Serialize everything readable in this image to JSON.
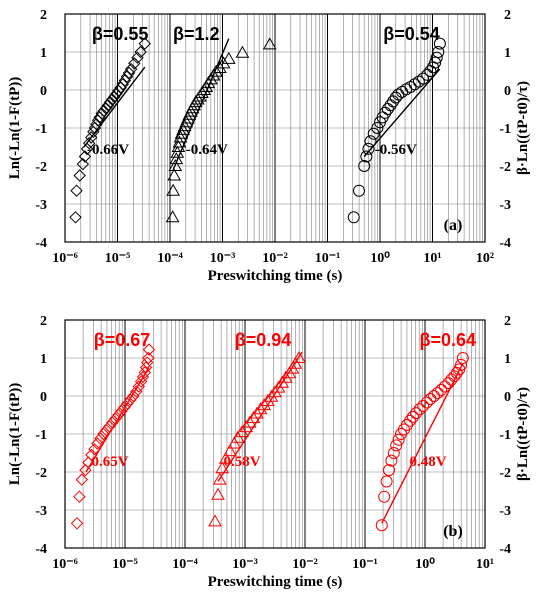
{
  "chart_data": [
    {
      "type": "scatter",
      "panel_label": "(a)",
      "xlabel": "Preswitching time (s)",
      "ylabel_left": "Ln(-Ln(1-F(tP))",
      "ylabel_right": "β·Ln((tP-t0)/τ)",
      "x_scale": "log",
      "xlim": [
        -6,
        2
      ],
      "ylim": [
        -4,
        2
      ],
      "x_tick_labels": [
        "10⁻⁶",
        "10⁻⁵",
        "10⁻⁴",
        "10⁻³",
        "10⁻²",
        "10⁻¹",
        "10⁰",
        "10¹",
        "10²"
      ],
      "y_tick_labels": [
        "-4",
        "-3",
        "-2",
        "-1",
        "0",
        "1",
        "2"
      ],
      "color": "#000000",
      "grid": true,
      "series": [
        {
          "marker": "diamond",
          "beta_label": "β=0.55",
          "voltage_label": "-0.66V",
          "x_log": [
            -5.8,
            -5.78,
            -5.72,
            -5.66,
            -5.62,
            -5.58,
            -5.54,
            -5.5,
            -5.46,
            -5.43,
            -5.4,
            -5.37,
            -5.34,
            -5.3,
            -5.26,
            -5.22,
            -5.18,
            -5.14,
            -5.1,
            -5.06,
            -5.02,
            -4.98,
            -4.94,
            -4.9,
            -4.86,
            -4.82,
            -4.78,
            -4.74,
            -4.68,
            -4.62,
            -4.56,
            -4.48
          ],
          "y": [
            -3.35,
            -2.65,
            -2.25,
            -1.95,
            -1.75,
            -1.55,
            -1.4,
            -1.25,
            -1.1,
            -1.0,
            -0.9,
            -0.8,
            -0.72,
            -0.62,
            -0.55,
            -0.48,
            -0.4,
            -0.32,
            -0.25,
            -0.18,
            -0.1,
            -0.02,
            0.06,
            0.15,
            0.25,
            0.35,
            0.45,
            0.55,
            0.7,
            0.85,
            1.0,
            1.22
          ],
          "fit_x_log": [
            -5.64,
            -4.48
          ],
          "fit_y": [
            -1.5,
            0.6
          ]
        },
        {
          "marker": "triangle",
          "beta_label": "β=1.2",
          "voltage_label": "-0.64V",
          "x_log": [
            -3.95,
            -3.94,
            -3.92,
            -3.9,
            -3.88,
            -3.86,
            -3.84,
            -3.82,
            -3.8,
            -3.78,
            -3.75,
            -3.72,
            -3.69,
            -3.66,
            -3.63,
            -3.6,
            -3.57,
            -3.54,
            -3.51,
            -3.47,
            -3.43,
            -3.39,
            -3.35,
            -3.31,
            -3.27,
            -3.22,
            -3.17,
            -3.12,
            -3.05,
            -2.98,
            -2.88,
            -2.62,
            -2.1
          ],
          "y": [
            -3.35,
            -2.65,
            -2.25,
            -2.0,
            -1.82,
            -1.65,
            -1.5,
            -1.38,
            -1.25,
            -1.15,
            -1.05,
            -0.95,
            -0.85,
            -0.75,
            -0.65,
            -0.57,
            -0.48,
            -0.4,
            -0.32,
            -0.25,
            -0.17,
            -0.08,
            0.0,
            0.08,
            0.18,
            0.28,
            0.38,
            0.48,
            0.58,
            0.7,
            0.82,
            0.98,
            1.2
          ],
          "fit_x_log": [
            -3.94,
            -2.88
          ],
          "fit_y": [
            -2.1,
            1.35
          ]
        },
        {
          "marker": "circle",
          "beta_label": "β=0.54",
          "voltage_label": "-0.56V",
          "x_log": [
            -0.5,
            -0.4,
            -0.3,
            -0.26,
            -0.22,
            -0.18,
            -0.12,
            -0.05,
            0.0,
            0.05,
            0.1,
            0.15,
            0.2,
            0.25,
            0.3,
            0.35,
            0.42,
            0.5,
            0.58,
            0.66,
            0.74,
            0.82,
            0.9,
            0.96,
            1.01,
            1.05,
            1.08,
            1.11,
            1.14
          ],
          "y": [
            -3.35,
            -2.65,
            -2.0,
            -1.75,
            -1.55,
            -1.35,
            -1.15,
            -1.0,
            -0.85,
            -0.72,
            -0.6,
            -0.5,
            -0.4,
            -0.3,
            -0.2,
            -0.12,
            -0.05,
            0.02,
            0.08,
            0.15,
            0.22,
            0.3,
            0.4,
            0.5,
            0.6,
            0.72,
            0.85,
            1.0,
            1.22
          ],
          "fit_x_log": [
            -0.3,
            1.14
          ],
          "fit_y": [
            -1.75,
            0.55
          ]
        }
      ]
    },
    {
      "type": "scatter",
      "panel_label": "(b)",
      "xlabel": "Preswitching time (s)",
      "ylabel_left": "Ln(-Ln(1-F(tP))",
      "ylabel_right": "β·Ln((tP-t0)/τ)",
      "x_scale": "log",
      "xlim": [
        -6,
        1
      ],
      "ylim": [
        -4,
        2
      ],
      "x_tick_labels": [
        "10⁻⁶",
        "10⁻⁵",
        "10⁻⁴",
        "10⁻³",
        "10⁻²",
        "10⁻¹",
        "10⁰",
        "10¹"
      ],
      "y_tick_labels": [
        "-4",
        "-3",
        "-2",
        "-1",
        "0",
        "1",
        "2"
      ],
      "color": "#ff0000",
      "grid": true,
      "series": [
        {
          "marker": "diamond",
          "beta_label": "β=0.67",
          "voltage_label": "0.65V",
          "x_log": [
            -5.8,
            -5.76,
            -5.72,
            -5.66,
            -5.61,
            -5.56,
            -5.51,
            -5.46,
            -5.41,
            -5.36,
            -5.31,
            -5.26,
            -5.21,
            -5.16,
            -5.11,
            -5.06,
            -5.01,
            -4.96,
            -4.91,
            -4.86,
            -4.81,
            -4.77,
            -4.73,
            -4.7,
            -4.67,
            -4.65,
            -4.63,
            -4.61,
            -4.6
          ],
          "y": [
            -3.35,
            -2.65,
            -2.2,
            -1.95,
            -1.75,
            -1.55,
            -1.4,
            -1.25,
            -1.12,
            -1.0,
            -0.9,
            -0.8,
            -0.7,
            -0.6,
            -0.5,
            -0.4,
            -0.3,
            -0.2,
            -0.1,
            0.0,
            0.12,
            0.25,
            0.38,
            0.5,
            0.62,
            0.75,
            0.88,
            1.0,
            1.22
          ],
          "fit_x_log": [
            -5.65,
            -4.6
          ],
          "fit_y": [
            -2.0,
            0.75
          ]
        },
        {
          "marker": "triangle",
          "beta_label": "β=0.94",
          "voltage_label": "0.58V",
          "x_log": [
            -3.5,
            -3.45,
            -3.42,
            -3.38,
            -3.32,
            -3.25,
            -3.18,
            -3.12,
            -3.05,
            -2.98,
            -2.92,
            -2.86,
            -2.8,
            -2.74,
            -2.68,
            -2.62,
            -2.56,
            -2.5,
            -2.44,
            -2.38,
            -2.32,
            -2.26,
            -2.21,
            -2.16,
            -2.1
          ],
          "y": [
            -3.3,
            -2.6,
            -2.2,
            -1.9,
            -1.65,
            -1.45,
            -1.25,
            -1.1,
            -0.95,
            -0.82,
            -0.7,
            -0.58,
            -0.46,
            -0.35,
            -0.24,
            -0.13,
            -0.02,
            0.1,
            0.22,
            0.35,
            0.48,
            0.6,
            0.72,
            0.85,
            1.0
          ],
          "fit_x_log": [
            -3.45,
            -2.05
          ],
          "fit_y": [
            -2.25,
            1.15
          ]
        },
        {
          "marker": "circle",
          "beta_label": "β=0.64",
          "voltage_label": "0.48V",
          "x_log": [
            -0.72,
            -0.68,
            -0.64,
            -0.6,
            -0.56,
            -0.52,
            -0.48,
            -0.44,
            -0.4,
            -0.35,
            -0.3,
            -0.25,
            -0.2,
            -0.15,
            -0.09,
            -0.03,
            0.03,
            0.09,
            0.15,
            0.21,
            0.27,
            0.33,
            0.39,
            0.44,
            0.49,
            0.53,
            0.57,
            0.6,
            0.63
          ],
          "y": [
            -3.4,
            -2.65,
            -2.25,
            -1.95,
            -1.7,
            -1.5,
            -1.3,
            -1.15,
            -1.0,
            -0.88,
            -0.76,
            -0.65,
            -0.55,
            -0.45,
            -0.35,
            -0.26,
            -0.17,
            -0.08,
            0.0,
            0.08,
            0.16,
            0.25,
            0.34,
            0.43,
            0.52,
            0.61,
            0.7,
            0.82,
            1.0
          ],
          "fit_x_log": [
            -0.72,
            0.63
          ],
          "fit_y": [
            -3.35,
            0.85
          ]
        }
      ]
    }
  ]
}
